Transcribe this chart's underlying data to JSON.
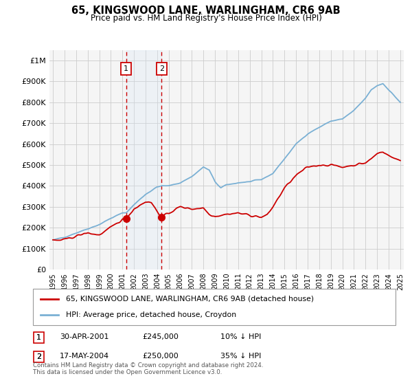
{
  "title": "65, KINGSWOOD LANE, WARLINGHAM, CR6 9AB",
  "subtitle": "Price paid vs. HM Land Registry's House Price Index (HPI)",
  "ylim": [
    0,
    1050000
  ],
  "yticks": [
    0,
    100000,
    200000,
    300000,
    400000,
    500000,
    600000,
    700000,
    800000,
    900000,
    1000000
  ],
  "ytick_labels": [
    "£0",
    "£100K",
    "£200K",
    "£300K",
    "£400K",
    "£500K",
    "£600K",
    "£700K",
    "£800K",
    "£900K",
    "£1M"
  ],
  "background_color": "#ffffff",
  "plot_bg_color": "#f5f5f5",
  "grid_color": "#cccccc",
  "red_line_color": "#cc0000",
  "blue_line_color": "#7ab0d4",
  "shade_color": "#d8e8f8",
  "t1_year": 2001.33,
  "t1_price": 245000,
  "t2_year": 2004.38,
  "t2_price": 250000,
  "legend_red_label": "65, KINGSWOOD LANE, WARLINGHAM, CR6 9AB (detached house)",
  "legend_blue_label": "HPI: Average price, detached house, Croydon",
  "footer": "Contains HM Land Registry data © Crown copyright and database right 2024.\nThis data is licensed under the Open Government Licence v3.0.",
  "xtick_years": [
    1995,
    1996,
    1997,
    1998,
    1999,
    2000,
    2001,
    2002,
    2003,
    2004,
    2005,
    2006,
    2007,
    2008,
    2009,
    2010,
    2011,
    2012,
    2013,
    2014,
    2015,
    2016,
    2017,
    2018,
    2019,
    2020,
    2021,
    2022,
    2023,
    2024,
    2025
  ],
  "row1_label": "1",
  "row1_date": "30-APR-2001",
  "row1_price": "£245,000",
  "row1_hpi": "10% ↓ HPI",
  "row2_label": "2",
  "row2_date": "17-MAY-2004",
  "row2_price": "£250,000",
  "row2_hpi": "35% ↓ HPI"
}
